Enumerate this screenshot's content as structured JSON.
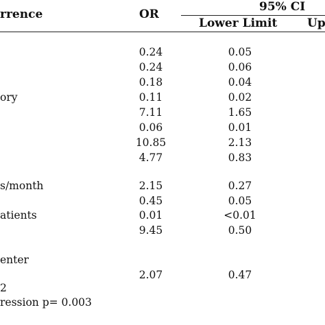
{
  "header": {
    "col_variable": "rrence",
    "col_or": "OR",
    "col_ci": "95% CI",
    "col_lower": "Lower Limit",
    "col_upper": "Up"
  },
  "rows": [
    {
      "label": "",
      "or": "0.24",
      "lower": "0.05"
    },
    {
      "label": "",
      "or": "0.24",
      "lower": "0.06"
    },
    {
      "label": "",
      "or": "0.18",
      "lower": "0.04"
    },
    {
      "label": "ory",
      "or": "0.11",
      "lower": "0.02"
    },
    {
      "label": "",
      "or": "7.11",
      "lower": "1.65"
    },
    {
      "label": "",
      "or": "0.06",
      "lower": "0.01"
    },
    {
      "label": "",
      "or": "10.85",
      "lower": "2.13"
    },
    {
      "label": "",
      "or": "4.77",
      "lower": "0.83"
    },
    {
      "label": "s/month",
      "or": "2.15",
      "lower": "0.27"
    },
    {
      "label": "",
      "or": "0.45",
      "lower": "0.05"
    },
    {
      "label": "atients",
      "or": "0.01",
      "lower": "<0.01"
    },
    {
      "label": "",
      "or": "9.45",
      "lower": "0.50"
    },
    {
      "label": "enter",
      "or": "",
      "lower": ""
    },
    {
      "label": "",
      "or": "2.07",
      "lower": "0.47"
    },
    {
      "label": "2",
      "or": "",
      "lower": ""
    }
  ],
  "footnote": "ression p= 0.003"
}
